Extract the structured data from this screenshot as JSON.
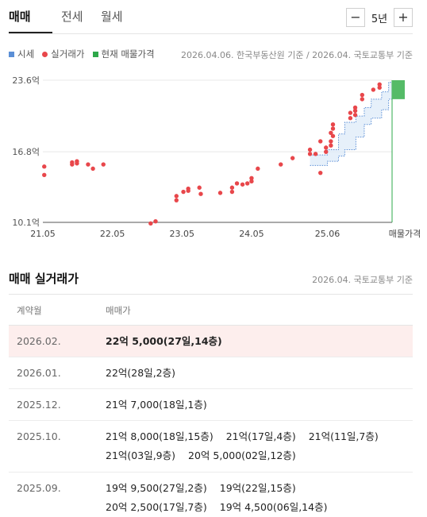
{
  "tabs": [
    "매매",
    "전세",
    "월세"
  ],
  "period": {
    "minus": "−",
    "value": "5년",
    "plus": "+"
  },
  "legend": [
    {
      "label": "시세",
      "color": "#5b8fd6",
      "shape": "square"
    },
    {
      "label": "실거래가",
      "color": "#e8474b",
      "shape": "dot"
    },
    {
      "label": "현재 매물가격",
      "color": "#2ea84a",
      "shape": "square"
    }
  ],
  "source_note": "2026.04.06. 한국부동산원 기준 / 2026.04. 국토교통부 기준",
  "chart_data": {
    "type": "scatter",
    "yticks": [
      "23.6억",
      "16.8억",
      "10.1억"
    ],
    "ytick_values": [
      23.6,
      16.8,
      10.1
    ],
    "ylim": [
      10.1,
      23.6
    ],
    "xticks": [
      "21.05",
      "22.05",
      "23.05",
      "24.05",
      "25.06",
      "매물가격"
    ],
    "xtick_values": [
      2021.33,
      2022.33,
      2023.33,
      2024.33,
      2025.42
    ],
    "xlim": [
      2021.33,
      2026.35
    ],
    "series": [
      {
        "name": "실거래가",
        "points": [
          [
            2021.35,
            15.4
          ],
          [
            2021.35,
            14.6
          ],
          [
            2021.75,
            15.6
          ],
          [
            2021.75,
            15.8
          ],
          [
            2021.82,
            15.7
          ],
          [
            2021.82,
            15.9
          ],
          [
            2021.98,
            15.6
          ],
          [
            2022.05,
            15.2
          ],
          [
            2022.2,
            15.6
          ],
          [
            2022.88,
            10.0
          ],
          [
            2022.95,
            10.2
          ],
          [
            2023.25,
            12.2
          ],
          [
            2023.25,
            12.6
          ],
          [
            2023.35,
            13.0
          ],
          [
            2023.42,
            13.3
          ],
          [
            2023.42,
            13.1
          ],
          [
            2023.58,
            13.4
          ],
          [
            2023.6,
            12.8
          ],
          [
            2023.88,
            12.9
          ],
          [
            2024.05,
            13.0
          ],
          [
            2024.05,
            13.4
          ],
          [
            2024.12,
            13.8
          ],
          [
            2024.2,
            13.7
          ],
          [
            2024.27,
            13.8
          ],
          [
            2024.33,
            14.0
          ],
          [
            2024.33,
            14.3
          ],
          [
            2024.42,
            15.2
          ],
          [
            2024.75,
            15.6
          ],
          [
            2024.92,
            16.2
          ],
          [
            2025.17,
            16.6
          ],
          [
            2025.17,
            17.0
          ],
          [
            2025.25,
            16.6
          ],
          [
            2025.32,
            14.8
          ],
          [
            2025.32,
            17.8
          ],
          [
            2025.4,
            16.8
          ],
          [
            2025.4,
            17.2
          ],
          [
            2025.47,
            17.4
          ],
          [
            2025.47,
            17.8
          ],
          [
            2025.47,
            18.6
          ],
          [
            2025.5,
            19.0
          ],
          [
            2025.5,
            19.4
          ],
          [
            2025.5,
            18.3
          ],
          [
            2025.75,
            20.0
          ],
          [
            2025.75,
            20.5
          ],
          [
            2025.82,
            20.3
          ],
          [
            2025.82,
            20.7
          ],
          [
            2025.82,
            21.0
          ],
          [
            2025.92,
            21.8
          ],
          [
            2025.92,
            22.2
          ],
          [
            2026.08,
            22.7
          ],
          [
            2026.17,
            22.9
          ],
          [
            2026.17,
            23.2
          ]
        ]
      },
      {
        "name": "시세",
        "steps": [
          [
            2025.17,
            15.5,
            16.5
          ],
          [
            2025.42,
            15.9,
            17.0
          ],
          [
            2025.58,
            16.4,
            18.5
          ],
          [
            2025.67,
            17.0,
            19.6
          ],
          [
            2025.83,
            18.2,
            20.2
          ],
          [
            2025.95,
            19.4,
            21.0
          ],
          [
            2026.05,
            20.0,
            21.8
          ],
          [
            2026.2,
            20.8,
            22.5
          ],
          [
            2026.3,
            21.8,
            23.4
          ]
        ]
      },
      {
        "name": "현재 매물가격",
        "range": [
          21.8,
          23.6
        ]
      }
    ]
  },
  "deals_section": {
    "title": "매매 실거래가",
    "source": "2026.04. 국토교통부 기준",
    "col_month": "계약월",
    "col_price": "매매가",
    "rows": [
      {
        "month": "2026.02.",
        "highlight": true,
        "deals": [
          "22억 5,000(27일,14층)"
        ]
      },
      {
        "month": "2026.01.",
        "highlight": false,
        "deals": [
          "22억(28일,2층)"
        ]
      },
      {
        "month": "2025.12.",
        "highlight": false,
        "deals": [
          "21억 7,000(18일,1층)"
        ]
      },
      {
        "month": "2025.10.",
        "highlight": false,
        "deals": [
          "21억 8,000(18일,15층)",
          "21억(17일,4층)",
          "21억(11일,7층)",
          "21억(03일,9층)",
          "20억 5,000(02일,12층)"
        ]
      },
      {
        "month": "2025.09.",
        "highlight": false,
        "deals": [
          "19억 9,500(27일,2층)",
          "19억(22일,15층)",
          "20억 2,500(17일,7층)",
          "19억 4,500(06일,14층)"
        ]
      }
    ]
  }
}
